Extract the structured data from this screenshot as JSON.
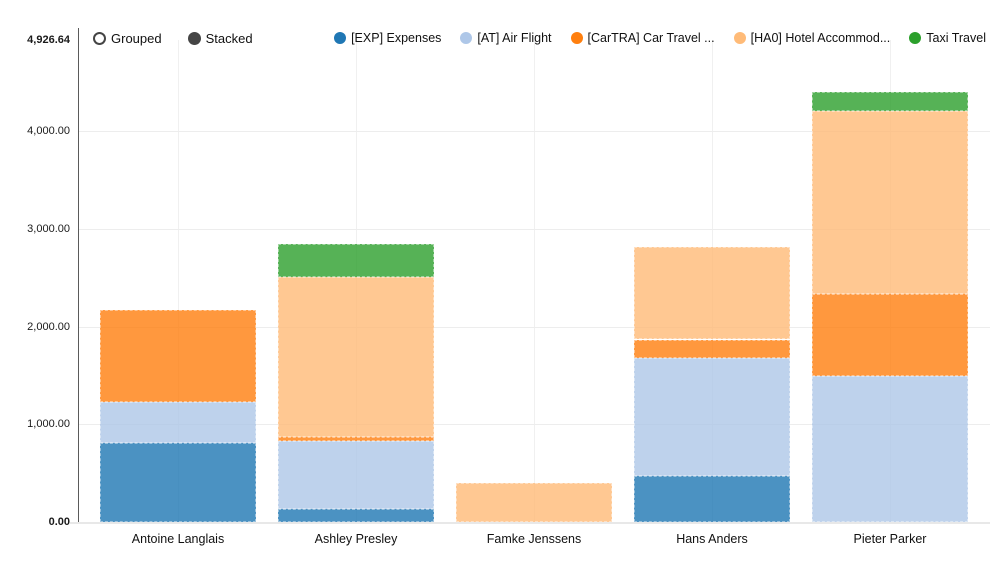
{
  "controls": {
    "mode_options": [
      {
        "label": "Grouped",
        "selected": false
      },
      {
        "label": "Stacked",
        "selected": true
      }
    ],
    "radio_color": "#454545"
  },
  "chart_data": {
    "type": "bar",
    "stacked": true,
    "title": "",
    "xlabel": "",
    "ylabel": "",
    "ylim": [
      0,
      4926.64
    ],
    "grid": true,
    "legend_position": "top-right",
    "bar_opacity": 0.8,
    "categories": [
      "Antoine Langlais",
      "Ashley Presley",
      "Famke Jenssens",
      "Hans Anders",
      "Pieter Parker"
    ],
    "series": [
      {
        "name": "[EXP] Expenses",
        "color": "#1f77b4",
        "values": [
          805,
          135,
          0,
          470,
          0
        ]
      },
      {
        "name": "[AT] Air Flight",
        "color": "#aec7e8",
        "values": [
          420,
          692,
          0,
          1205,
          1490
        ]
      },
      {
        "name": "[CarTRA] Car Travel ...",
        "color": "#ff7f0e",
        "values": [
          940,
          40,
          0,
          192,
          845
        ]
      },
      {
        "name": "[HA0] Hotel Accommod...",
        "color": "#ffbb78",
        "values": [
          0,
          1643,
          400,
          950,
          1870
        ]
      },
      {
        "name": "Taxi Travel",
        "color": "#2ca02c",
        "values": [
          0,
          337,
          0,
          0,
          195
        ]
      }
    ],
    "y_ticks": [
      {
        "label": "0.00",
        "value": 0,
        "bold": true
      },
      {
        "label": "1,000.00",
        "value": 1000,
        "bold": false
      },
      {
        "label": "2,000.00",
        "value": 2000,
        "bold": false
      },
      {
        "label": "3,000.00",
        "value": 3000,
        "bold": false
      },
      {
        "label": "4,000.00",
        "value": 4000,
        "bold": false
      },
      {
        "label": "4,926.64",
        "value": 4926.64,
        "bold": true
      }
    ]
  }
}
